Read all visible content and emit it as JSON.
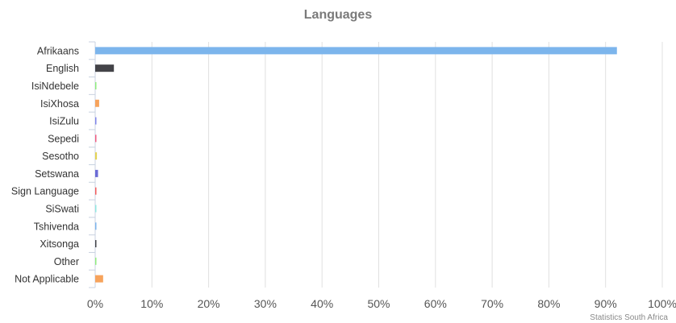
{
  "chart_data": {
    "type": "bar",
    "orientation": "horizontal",
    "title": "Languages",
    "credit": "Statistics South Africa",
    "categories": [
      "Afrikaans",
      "English",
      "IsiNdebele",
      "IsiXhosa",
      "IsiZulu",
      "Sepedi",
      "Sesotho",
      "Setswana",
      "Sign Language",
      "SiSwati",
      "Tshivenda",
      "Xitsonga",
      "Other",
      "Not Applicable"
    ],
    "values": [
      92.0,
      3.3,
      0.05,
      0.7,
      0.1,
      0.05,
      0.3,
      0.5,
      0.05,
      0.05,
      0.05,
      0.05,
      0.2,
      1.4
    ],
    "colors": [
      "#7cb5ec",
      "#434348",
      "#90ed7d",
      "#f7a35c",
      "#8085e9",
      "#f15c80",
      "#e4d354",
      "#6b6bd6",
      "#f45b5b",
      "#91e8e1",
      "#7cb5ec",
      "#434348",
      "#90ed7d",
      "#f7a35c"
    ],
    "xlim": [
      0,
      100
    ],
    "ticks": [
      "0%",
      "10%",
      "20%",
      "30%",
      "40%",
      "50%",
      "60%",
      "70%",
      "80%",
      "90%",
      "100%"
    ],
    "tick_values": [
      0,
      10,
      20,
      30,
      40,
      50,
      60,
      70,
      80,
      90,
      100
    ],
    "grid": true,
    "legend": "none"
  }
}
